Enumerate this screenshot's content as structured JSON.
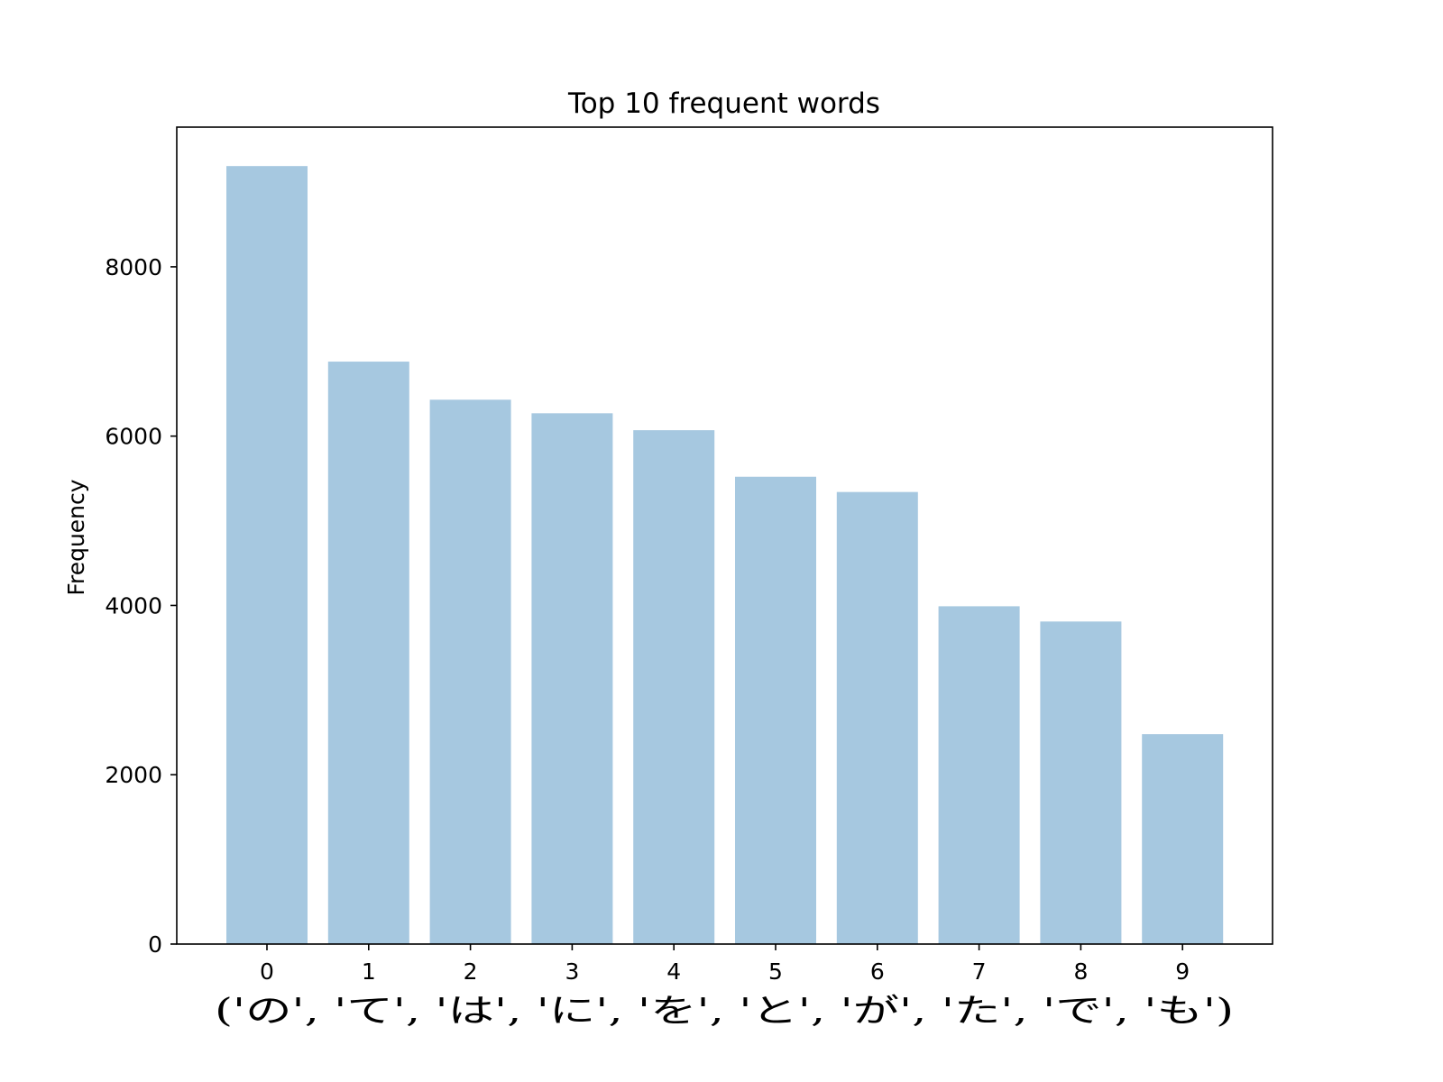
{
  "chart_data": {
    "type": "bar",
    "title": "Top 10 frequent words",
    "xlabel": "('の', 'て', 'は', 'に', 'を', 'と', 'が', 'た', 'で', 'も')",
    "ylabel": "Frequency",
    "categories": [
      "0",
      "1",
      "2",
      "3",
      "4",
      "5",
      "6",
      "7",
      "8",
      "9"
    ],
    "values": [
      9190,
      6880,
      6430,
      6270,
      6070,
      5520,
      5340,
      3990,
      3810,
      2480
    ],
    "ylim": [
      0,
      9650
    ],
    "yticks": [
      0,
      2000,
      4000,
      6000,
      8000
    ],
    "grid": false,
    "legend": "none",
    "bar_color": "#a6c8e0",
    "axis_color": "#000000"
  }
}
